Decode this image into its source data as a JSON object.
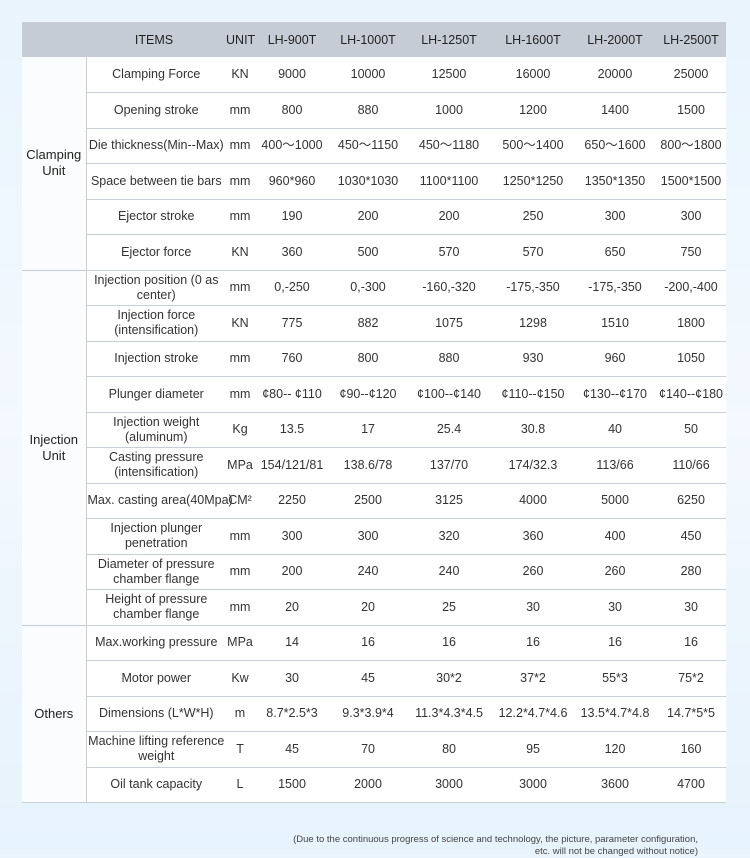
{
  "header": {
    "items": "ITEMS",
    "unit": "UNIT",
    "models": [
      "LH-900T",
      "LH-1000T",
      "LH-1250T",
      "LH-1600T",
      "LH-2000T",
      "LH-2500T"
    ]
  },
  "groups": [
    {
      "name": "Clamping Unit",
      "rows": [
        {
          "item": "Clamping Force",
          "unit": "KN",
          "values": [
            "9000",
            "10000",
            "12500",
            "16000",
            "20000",
            "25000"
          ]
        },
        {
          "item": "Opening stroke",
          "unit": "mm",
          "values": [
            "800",
            "880",
            "1000",
            "1200",
            "1400",
            "1500"
          ]
        },
        {
          "item": "Die thickness(Min--Max)",
          "unit": "mm",
          "values": [
            "400～1000",
            "450～1150",
            "450～1180",
            "500～1400",
            "650～1600",
            "800～1800"
          ]
        },
        {
          "item": "Space between tie bars",
          "unit": "mm",
          "values": [
            "960*960",
            "1030*1030",
            "1100*1100",
            "1250*1250",
            "1350*1350",
            "1500*1500"
          ]
        },
        {
          "item": "Ejector stroke",
          "unit": "mm",
          "values": [
            "190",
            "200",
            "200",
            "250",
            "300",
            "300"
          ]
        },
        {
          "item": "Ejector force",
          "unit": "KN",
          "values": [
            "360",
            "500",
            "570",
            "570",
            "650",
            "750"
          ]
        }
      ]
    },
    {
      "name": "Injection Unit",
      "rows": [
        {
          "item": "Injection position (0 as center)",
          "unit": "mm",
          "values": [
            "0,-250",
            "0,-300",
            "-160,-320",
            "-175,-350",
            "-175,-350",
            "-200,-400"
          ]
        },
        {
          "item": "Injection force (intensification)",
          "unit": "KN",
          "values": [
            "775",
            "882",
            "1075",
            "1298",
            "1510",
            "1800"
          ]
        },
        {
          "item": "Injection stroke",
          "unit": "mm",
          "values": [
            "760",
            "800",
            "880",
            "930",
            "960",
            "1050"
          ]
        },
        {
          "item": "Plunger diameter",
          "unit": "mm",
          "values": [
            "¢80-- ¢110",
            "¢90--¢120",
            "¢100--¢140",
            "¢110--¢150",
            "¢130--¢170",
            "¢140--¢180"
          ]
        },
        {
          "item": "Injection weight (aluminum)",
          "unit": "Kg",
          "values": [
            "13.5",
            "17",
            "25.4",
            "30.8",
            "40",
            "50"
          ]
        },
        {
          "item": "Casting pressure (intensification)",
          "unit": "MPa",
          "values": [
            "154/121/81",
            "138.6/78",
            "137/70",
            "174/32.3",
            "113/66",
            "110/66"
          ]
        },
        {
          "item": "Max. casting area(40Mpa)",
          "unit": "CM²",
          "values": [
            "2250",
            "2500",
            "3125",
            "4000",
            "5000",
            "6250"
          ]
        },
        {
          "item": "Injection plunger penetration",
          "unit": "mm",
          "values": [
            "300",
            "300",
            "320",
            "360",
            "400",
            "450"
          ]
        },
        {
          "item": "Diameter of pressure chamber flange",
          "unit": "mm",
          "values": [
            "200",
            "240",
            "240",
            "260",
            "260",
            "280"
          ]
        },
        {
          "item": "Height of pressure chamber flange",
          "unit": "mm",
          "values": [
            "20",
            "20",
            "25",
            "30",
            "30",
            "30"
          ]
        }
      ]
    },
    {
      "name": "Others",
      "rows": [
        {
          "item": "Max.working pressure",
          "unit": "MPa",
          "values": [
            "14",
            "16",
            "16",
            "16",
            "16",
            "16"
          ]
        },
        {
          "item": "Motor power",
          "unit": "Kw",
          "values": [
            "30",
            "45",
            "30*2",
            "37*2",
            "55*3",
            "75*2"
          ]
        },
        {
          "item": "Dimensions  (L*W*H)",
          "unit": "m",
          "values": [
            "8.7*2.5*3",
            "9.3*3.9*4",
            "11.3*4.3*4.5",
            "12.2*4.7*4.6",
            "13.5*4.7*4.8",
            "14.7*5*5"
          ]
        },
        {
          "item": "Machine lifting reference weight",
          "unit": "T",
          "values": [
            "45",
            "70",
            "80",
            "95",
            "120",
            "160"
          ]
        },
        {
          "item": "Oil tank capacity",
          "unit": "L",
          "values": [
            "1500",
            "2000",
            "3000",
            "3000",
            "3600",
            "4700"
          ]
        }
      ]
    }
  ],
  "footnote": "(Due to the continuous progress of science and technology, the picture, parameter configuration, etc. will not be changed without notice)"
}
